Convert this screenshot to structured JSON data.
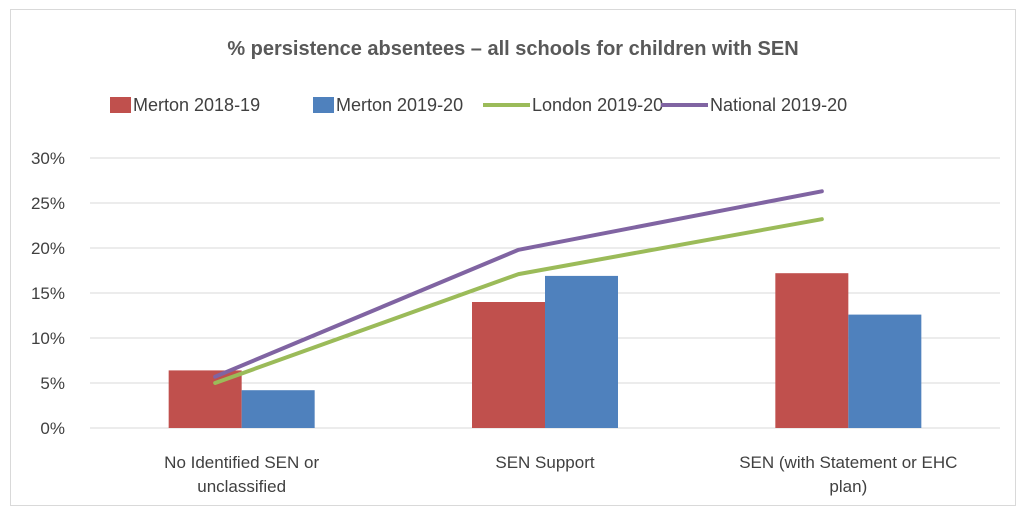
{
  "chart_data": {
    "type": "bar",
    "title": "% persistence absentees – all schools for children with SEN",
    "categories": [
      [
        "No Identified SEN or",
        "unclassified"
      ],
      [
        "SEN Support"
      ],
      [
        "SEN (with Statement or EHC",
        "plan)"
      ]
    ],
    "series": [
      {
        "name": "Merton 2018-19",
        "kind": "bar",
        "color": "#C0504D",
        "values": [
          6.4,
          14.0,
          17.2
        ]
      },
      {
        "name": "Merton 2019-20",
        "kind": "bar",
        "color": "#4F81BD",
        "values": [
          4.2,
          16.9,
          12.6
        ]
      },
      {
        "name": "London 2019-20",
        "kind": "line",
        "color": "#9BBB59",
        "values": [
          5.0,
          17.1,
          23.2
        ]
      },
      {
        "name": "National 2019-20",
        "kind": "line",
        "color": "#8064A2",
        "values": [
          5.7,
          19.8,
          26.3
        ]
      }
    ],
    "ylim": [
      0,
      30
    ],
    "yticks": [
      0,
      5,
      10,
      15,
      20,
      25,
      30
    ],
    "ytick_labels": [
      "0%",
      "5%",
      "10%",
      "15%",
      "20%",
      "25%",
      "30%"
    ],
    "grid": true,
    "legend_position": "top"
  }
}
